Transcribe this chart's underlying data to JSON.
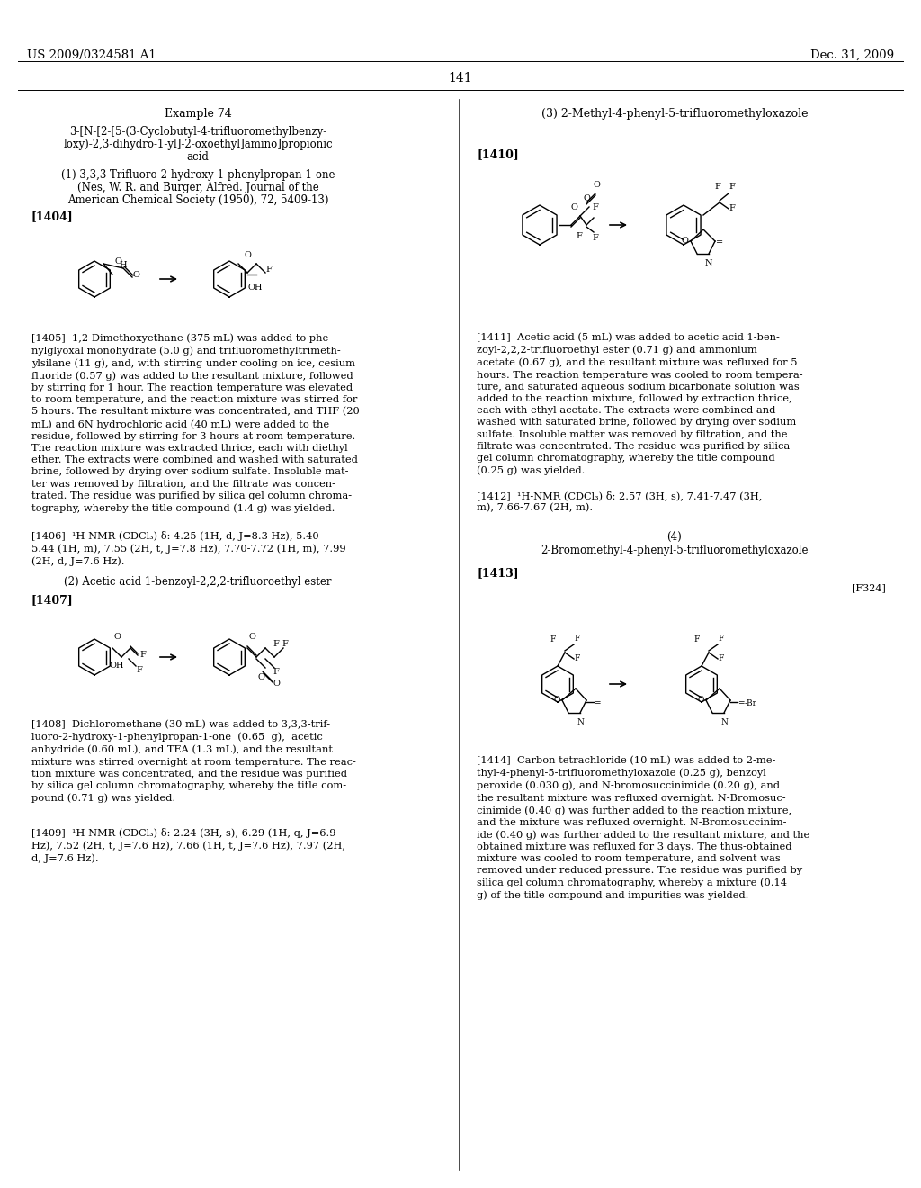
{
  "patent_left": "US 2009/0324581 A1",
  "patent_right": "Dec. 31, 2009",
  "page_number": "141",
  "background_color": "#ffffff",
  "text_color": "#000000",
  "font_size_header": 10,
  "font_size_body": 8.5,
  "font_size_page": 10,
  "example_title": "Example 74",
  "compound_title": "3-[N-[2-[5-(3-Cyclobutyl-4-trifluoromethylbenzy-\nloxy)-2,3-dihydro-1-yl]-2-oxoethyl]amino]propionic\nacid",
  "section1_title": "(1) 3,3,3-Trifluoro-2-hydroxy-1-phenylpropan-1-one\n(Nes, W. R. and Burger, Alfred. Journal of the\nAmerican Chemical Society (1950), 72, 5409-13)",
  "section3_title": "(3) 2-Methyl-4-phenyl-5-trifluoromethyloxazole",
  "section4_title": "(4)\n2-Bromomethyl-4-phenyl-5-trifluoromethyloxazole",
  "section2_title": "(2) Acetic acid 1-benzoyl-2,2,2-trifluoroethyl ester",
  "ref1404": "[1404]",
  "ref1405_text": "[1405]  1,2-Dimethoxyethane (375 mL) was added to phe-\nnylglyoxal monohydrate (5.0 g) and trifluoromethyltrimeth-\nylsilane (11 g), and, with stirring under cooling on ice, cesium\nfluoride (0.57 g) was added to the resultant mixture, followed\nby stirring for 1 hour. The reaction temperature was elevated\nto room temperature, and the reaction mixture was stirred for\n5 hours. The resultant mixture was concentrated, and THF (20\nmL) and 6N hydrochloric acid (40 mL) were added to the\nresidue, followed by stirring for 3 hours at room temperature.\nThe reaction mixture was extracted thrice, each with diethyl\nether. The extracts were combined and washed with saturated\nbrine, followed by drying over sodium sulfate. Insoluble mat-\nter was removed by filtration, and the filtrate was concen-\ntrated. The residue was purified by silica gel column chroma-\ntography, whereby the title compound (1.4 g) was yielded.",
  "ref1406_text": "[1406]  ¹H-NMR (CDCl₃) δ: 4.25 (1H, d, J=8.3 Hz), 5.40-\n5.44 (1H, m), 7.55 (2H, t, J=7.8 Hz), 7.70-7.72 (1H, m), 7.99\n(2H, d, J=7.6 Hz).",
  "ref1407": "[1407]",
  "ref1408_text": "[1408]  Dichloromethane (30 mL) was added to 3,3,3-trif-\nluoro-2-hydroxy-1-phenylpropan-1-one  (0.65  g),  acetic\nanhydride (0.60 mL), and TEA (1.3 mL), and the resultant\nmixture was stirred overnight at room temperature. The reac-\ntion mixture was concentrated, and the residue was purified\nby silica gel column chromatography, whereby the title com-\npound (0.71 g) was yielded.",
  "ref1409_text": "[1409]  ¹H-NMR (CDCl₃) δ: 2.24 (3H, s), 6.29 (1H, q, J=6.9\nHz), 7.52 (2H, t, J=7.6 Hz), 7.66 (1H, t, J=7.6 Hz), 7.97 (2H,\nd, J=7.6 Hz).",
  "ref1410": "[1410]",
  "ref1411_text": "[1411]  Acetic acid (5 mL) was added to acetic acid 1-ben-\nzoyl-2,2,2-trifluoroethyl ester (0.71 g) and ammonium\nacetate (0.67 g), and the resultant mixture was refluxed for 5\nhours. The reaction temperature was cooled to room tempera-\nture, and saturated aqueous sodium bicarbonate solution was\nadded to the reaction mixture, followed by extraction thrice,\neach with ethyl acetate. The extracts were combined and\nwashed with saturated brine, followed by drying over sodium\nsulfate. Insoluble matter was removed by filtration, and the\nfiltrate was concentrated. The residue was purified by silica\ngel column chromatography, whereby the title compound\n(0.25 g) was yielded.",
  "ref1412_text": "[1412]  ¹H-NMR (CDCl₃) δ: 2.57 (3H, s), 7.41-7.47 (3H,\nm), 7.66-7.67 (2H, m).",
  "ref1413": "[1413]",
  "ref1414_text": "[1414]  Carbon tetrachloride (10 mL) was added to 2-me-\nthyl-4-phenyl-5-trifluoromethyloxazole (0.25 g), benzoyl\nperoxide (0.030 g), and N-bromosuccinimide (0.20 g), and\nthe resultant mixture was refluxed overnight. N-Bromosuc-\ncinimide (0.40 g) was further added to the reaction mixture,\nand the mixture was refluxed overnight. N-Bromosuccinim-\nide (0.40 g) was further added to the resultant mixture, and the\nobtained mixture was refluxed for 3 days. The thus-obtained\nmixture was cooled to room temperature, and solvent was\nremoved under reduced pressure. The residue was purified by\nsilica gel column chromatography, whereby a mixture (0.14\ng) of the title compound and impurities was yielded.",
  "ref_f324": "[F324]"
}
